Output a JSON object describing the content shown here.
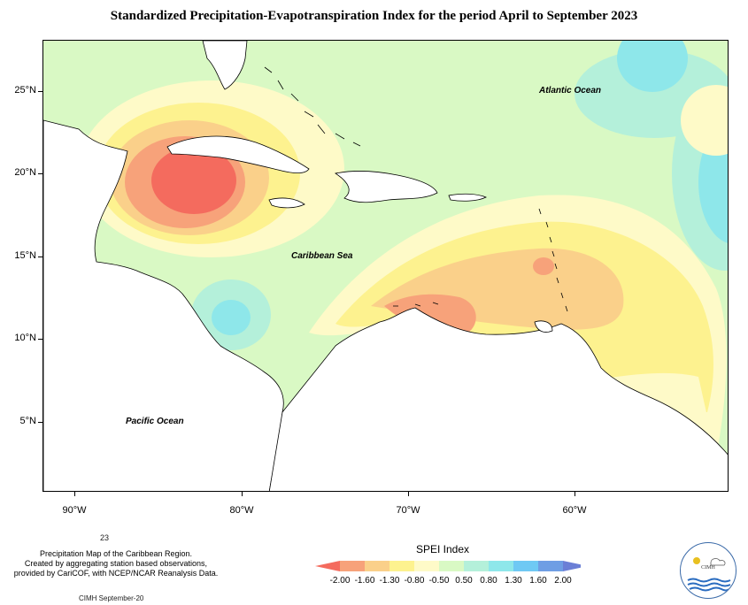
{
  "title": "Standardized Precipitation-Evapotranspiration Index for the period April to September 2023",
  "map": {
    "lat_labels": [
      "25°N",
      "20°N",
      "15°N",
      "10°N",
      "5°N"
    ],
    "lon_labels": [
      "90°W",
      "80°W",
      "70°W",
      "60°W"
    ],
    "ocean_labels": {
      "atlantic": "Atlantic Ocean",
      "caribbean": "Caribbean Sea",
      "pacific": "Pacific Ocean"
    }
  },
  "footer": {
    "page_number": "23",
    "credits_line1": "Precipitation Map of the Caribbean Region.",
    "credits_line2": "Created by aggregating station based observations,",
    "credits_line3": "provided by CariCOF, with NCEP/NCAR Reanalysis Data.",
    "source": "CIMH September-20"
  },
  "legend": {
    "title": "SPEI Index",
    "ticks": [
      "-2.00",
      "-1.60",
      "-1.30",
      "-0.80",
      "-0.50",
      "0.50",
      "0.80",
      "1.30",
      "1.60",
      "2.00"
    ],
    "colors": [
      "#f46b5e",
      "#f7a27a",
      "#fad08a",
      "#fdf28f",
      "#fefac8",
      "#d9f9c4",
      "#b4f0da",
      "#8ee7ea",
      "#6fc9f4",
      "#6f9ee4",
      "#6b7fd6"
    ]
  },
  "logo": {
    "name": "CIMH"
  }
}
